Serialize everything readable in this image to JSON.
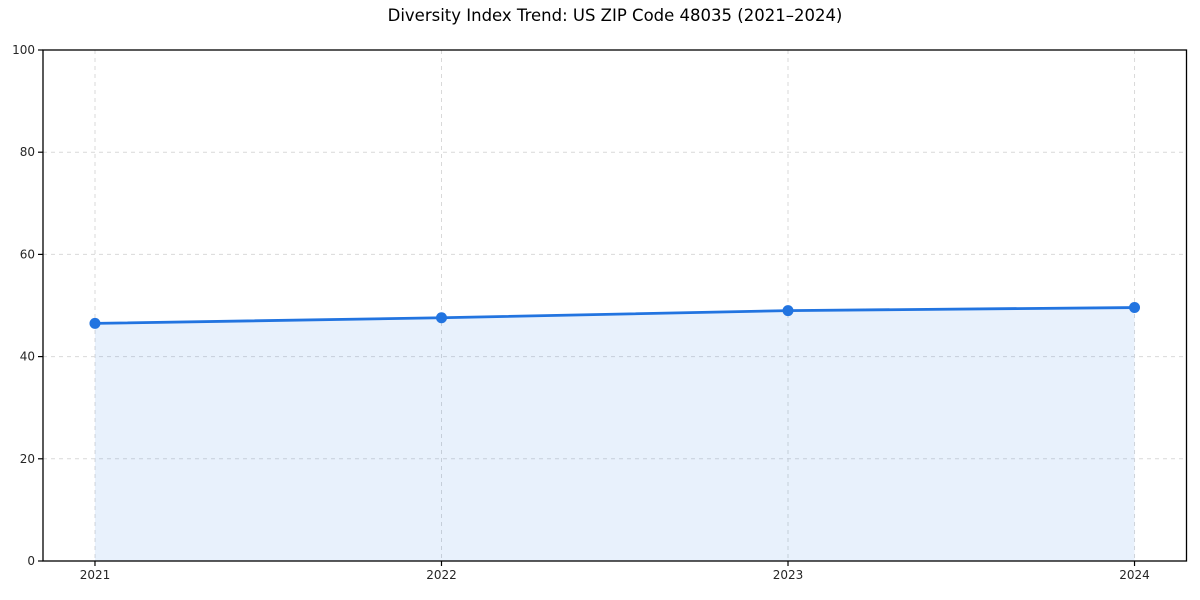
{
  "chart_data": {
    "type": "area",
    "title": "Diversity Index Trend: US ZIP Code 48035 (2021–2024)",
    "x": [
      2021,
      2022,
      2023,
      2024
    ],
    "series": [
      {
        "name": "Diversity Index",
        "values": [
          46.5,
          47.6,
          49.0,
          49.6
        ]
      }
    ],
    "xlabel": "",
    "ylabel": "",
    "ylim": [
      0,
      100
    ],
    "yticks": [
      0,
      20,
      40,
      60,
      80,
      100
    ],
    "xtick_labels": [
      "2021",
      "2022",
      "2023",
      "2024"
    ],
    "grid": "dashed",
    "legend": "none",
    "line_color": "#2274e0",
    "marker_color": "#2274e0",
    "fill_color": "#2274e0",
    "fill_opacity": 0.1,
    "grid_color": "#d9d9d9",
    "spine_color": "#000000",
    "tick_label_color": "#262626",
    "background": "#ffffff"
  }
}
